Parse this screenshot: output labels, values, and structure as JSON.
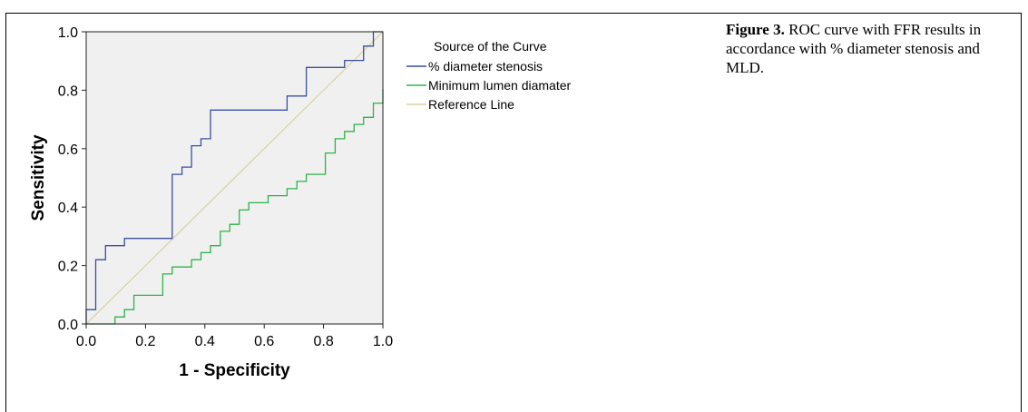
{
  "caption": {
    "label": "Figure 3.",
    "text": " ROC curve with FFR results in accordance with % diameter stenosis and MLD."
  },
  "chart_data": {
    "type": "line",
    "title": "",
    "xlabel": "1 - Specificity",
    "ylabel": "Sensitivity",
    "xlim": [
      0,
      1
    ],
    "ylim": [
      0,
      1
    ],
    "xticks": [
      "0.0",
      "0.2",
      "0.4",
      "0.6",
      "0.8",
      "1.0"
    ],
    "yticks": [
      "0.0",
      "0.2",
      "0.4",
      "0.6",
      "0.8",
      "1.0"
    ],
    "grid": false,
    "plot_background": "#f0f0f0",
    "legend": {
      "title": "Source of the Curve",
      "placement": "right"
    },
    "series": [
      {
        "name": "% diameter stenosis",
        "color": "#3a4f9c",
        "x": [
          0,
          0,
          0.032,
          0.032,
          0.065,
          0.065,
          0.129,
          0.129,
          0.29,
          0.29,
          0.323,
          0.323,
          0.355,
          0.355,
          0.387,
          0.387,
          0.419,
          0.419,
          0.677,
          0.677,
          0.742,
          0.742,
          0.871,
          0.871,
          0.935,
          0.935,
          0.968,
          0.968,
          1.0
        ],
        "y": [
          0,
          0.049,
          0.049,
          0.22,
          0.22,
          0.268,
          0.268,
          0.293,
          0.293,
          0.512,
          0.512,
          0.537,
          0.537,
          0.61,
          0.61,
          0.634,
          0.634,
          0.732,
          0.732,
          0.78,
          0.78,
          0.878,
          0.878,
          0.902,
          0.902,
          0.951,
          0.951,
          1.0,
          1.0
        ]
      },
      {
        "name": "Minimum lumen diamater",
        "color": "#2eb34a",
        "x": [
          0,
          0.097,
          0.097,
          0.129,
          0.129,
          0.161,
          0.161,
          0.258,
          0.258,
          0.29,
          0.29,
          0.355,
          0.355,
          0.387,
          0.387,
          0.419,
          0.419,
          0.452,
          0.452,
          0.484,
          0.484,
          0.516,
          0.516,
          0.548,
          0.548,
          0.613,
          0.613,
          0.677,
          0.677,
          0.71,
          0.71,
          0.742,
          0.742,
          0.806,
          0.806,
          0.839,
          0.839,
          0.871,
          0.871,
          0.903,
          0.903,
          0.935,
          0.935,
          0.968,
          0.968,
          1.0,
          1.0
        ],
        "y": [
          0,
          0,
          0.024,
          0.024,
          0.049,
          0.049,
          0.098,
          0.098,
          0.171,
          0.171,
          0.195,
          0.195,
          0.22,
          0.22,
          0.244,
          0.244,
          0.268,
          0.268,
          0.317,
          0.317,
          0.341,
          0.341,
          0.39,
          0.39,
          0.415,
          0.415,
          0.439,
          0.439,
          0.463,
          0.463,
          0.488,
          0.488,
          0.512,
          0.512,
          0.585,
          0.585,
          0.634,
          0.634,
          0.659,
          0.659,
          0.683,
          0.683,
          0.707,
          0.707,
          0.756,
          0.756,
          0.805
        ]
      },
      {
        "name": "Reference Line",
        "color": "#d9d4a3",
        "x": [
          0,
          1
        ],
        "y": [
          0,
          1
        ]
      }
    ]
  }
}
